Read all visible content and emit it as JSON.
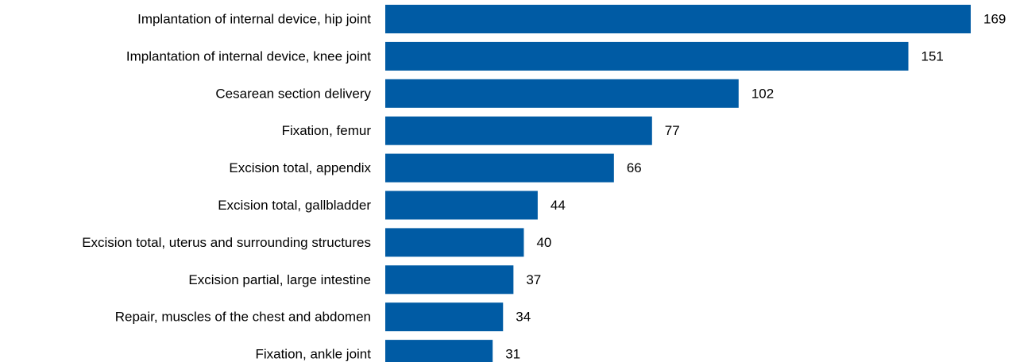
{
  "chart_data": {
    "type": "bar",
    "orientation": "horizontal",
    "title": "",
    "xlabel": "",
    "ylabel": "",
    "grid": false,
    "legend": "none",
    "bar_color": "#005ba4",
    "categories": [
      "Implantation of internal device, hip joint",
      "Implantation of internal device, knee joint",
      "Cesarean section delivery",
      "Fixation, femur",
      "Excision total, appendix",
      "Excision total, gallbladder",
      "Excision total, uterus and surrounding structures",
      "Excision partial, large intestine",
      "Repair, muscles of the chest and abdomen",
      "Fixation, ankle joint"
    ],
    "values": [
      169,
      151,
      102,
      77,
      66,
      44,
      40,
      37,
      34,
      31
    ],
    "xlim": [
      0,
      169
    ]
  }
}
